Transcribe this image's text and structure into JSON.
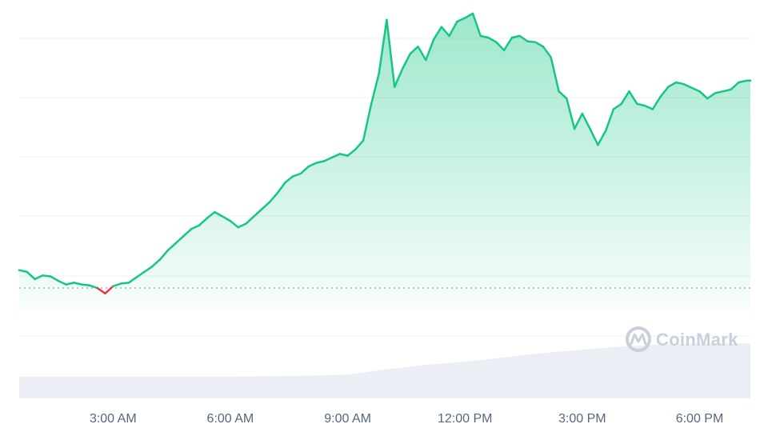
{
  "watermark": {
    "text": "CoinMark",
    "icon": "coinmarketcap-logo-icon"
  },
  "colors": {
    "up_line": "#16c784",
    "down_line": "#ea3943",
    "area_fill_top": "#16c784",
    "grid": "#eef0f4",
    "baseline": "#a6b0c3",
    "volume": "#eceef5"
  },
  "chart_data": {
    "type": "area",
    "title": "",
    "xlabel": "",
    "ylabel": "",
    "x_ticks": [
      "3:00 AM",
      "6:00 AM",
      "9:00 AM",
      "12:00 PM",
      "3:00 PM",
      "6:00 PM"
    ],
    "x_tick_hours": [
      3,
      6,
      9,
      12,
      15,
      18
    ],
    "x_range_hours": [
      0.6,
      19.3
    ],
    "y_range": [
      -25,
      315
    ],
    "baseline_value": 0,
    "grid": true,
    "legend": "none",
    "series": [
      {
        "x_hours": [
          0.6,
          0.8,
          1.0,
          1.2,
          1.4,
          1.6,
          1.8,
          2.0,
          2.2,
          2.4,
          2.6,
          2.8,
          3.0,
          3.2,
          3.4,
          3.6,
          3.8,
          4.0,
          4.2,
          4.4,
          4.6,
          4.8,
          5.0,
          5.2,
          5.4,
          5.6,
          5.8,
          6.0,
          6.2,
          6.4,
          6.6,
          6.8,
          7.0,
          7.2,
          7.4,
          7.6,
          7.8,
          8.0,
          8.2,
          8.4,
          8.6,
          8.8,
          9.0,
          9.2,
          9.4,
          9.6,
          9.8,
          10.0,
          10.2,
          10.4,
          10.6,
          10.8,
          11.0,
          11.2,
          11.4,
          11.6,
          11.8,
          12.0,
          12.2,
          12.4,
          12.6,
          12.8,
          13.0,
          13.2,
          13.4,
          13.6,
          13.8,
          14.0,
          14.2,
          14.4,
          14.6,
          14.8,
          15.0,
          15.2,
          15.4,
          15.6,
          15.8,
          16.0,
          16.2,
          16.4,
          16.6,
          16.8,
          17.0,
          17.2,
          17.4,
          17.6,
          17.8,
          18.0,
          18.2,
          18.4,
          18.6,
          18.8,
          19.0,
          19.2,
          19.3
        ],
        "values": [
          20,
          18,
          10,
          14,
          13,
          8,
          4,
          6,
          4,
          3,
          0,
          -6,
          2,
          5,
          6,
          12,
          18,
          24,
          32,
          42,
          50,
          58,
          66,
          70,
          78,
          85,
          80,
          75,
          68,
          72,
          80,
          88,
          96,
          106,
          118,
          125,
          128,
          136,
          140,
          142,
          146,
          150,
          148,
          155,
          165,
          205,
          240,
          300,
          225,
          245,
          262,
          270,
          255,
          278,
          292,
          282,
          298,
          302,
          307,
          282,
          280,
          275,
          266,
          280,
          282,
          276,
          275,
          270,
          258,
          220,
          212,
          178,
          195,
          178,
          160,
          176,
          200,
          206,
          220,
          206,
          204,
          200,
          214,
          225,
          230,
          228,
          224,
          220,
          212,
          218,
          220,
          222,
          230,
          232,
          232
        ]
      }
    ],
    "volume": {
      "x_hours": [
        0.6,
        3.0,
        6.0,
        8.0,
        9.0,
        10.0,
        11.0,
        12.0,
        13.0,
        14.0,
        15.0,
        16.0,
        17.0,
        18.0,
        19.3
      ],
      "values": [
        1.0,
        1.0,
        1.0,
        1.05,
        1.1,
        1.35,
        1.55,
        1.7,
        1.9,
        2.1,
        2.25,
        2.4,
        2.5,
        2.55,
        2.55
      ]
    }
  }
}
